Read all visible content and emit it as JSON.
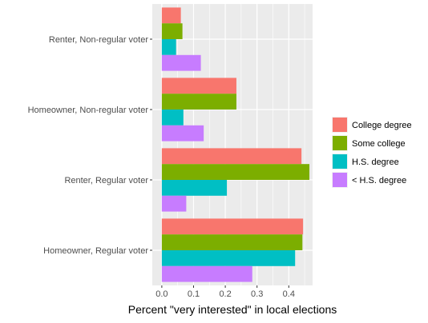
{
  "chart_data": {
    "type": "bar",
    "orientation": "horizontal",
    "title": "",
    "xlabel": "Percent \"very interested\" in local elections",
    "ylabel": "",
    "xlim": [
      -0.03,
      0.475
    ],
    "x_ticks": [
      "0.0",
      "0.1",
      "0.2",
      "0.3",
      "0.4"
    ],
    "x_tick_values": [
      0.0,
      0.1,
      0.2,
      0.3,
      0.4
    ],
    "grid": true,
    "legend_position": "right",
    "categories": [
      "Renter, Non-regular voter",
      "Homeowner, Non-regular voter",
      "Renter, Regular voter",
      "Homeowner, Regular voter"
    ],
    "series": [
      {
        "name": "College degree",
        "color": "#F8766D",
        "values": [
          0.06,
          0.235,
          0.44,
          0.445
        ]
      },
      {
        "name": "Some college",
        "color": "#7CAE00",
        "values": [
          0.065,
          0.235,
          0.465,
          0.443
        ]
      },
      {
        "name": "H.S. degree",
        "color": "#00BFC4",
        "values": [
          0.045,
          0.068,
          0.205,
          0.42
        ]
      },
      {
        "name": "< H.S. degree",
        "color": "#C77CFF",
        "values": [
          0.123,
          0.132,
          0.077,
          0.285
        ]
      }
    ]
  }
}
